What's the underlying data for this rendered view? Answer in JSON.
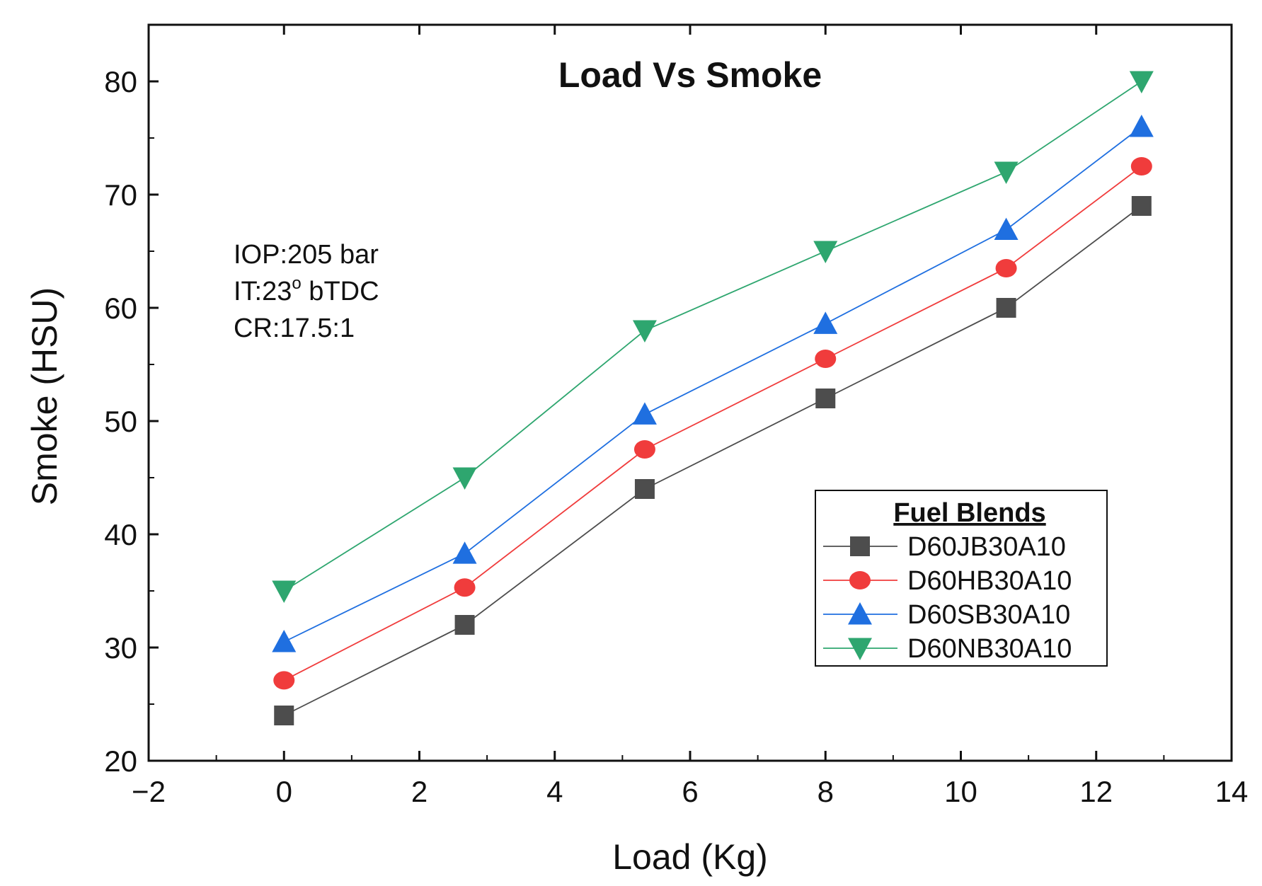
{
  "chart_data": {
    "type": "line",
    "title": "Load Vs Smoke",
    "xlabel": "Load (Kg)",
    "ylabel": "Smoke (HSU)",
    "xlim": [
      -2,
      14
    ],
    "ylim": [
      20,
      85
    ],
    "xticks": [
      -2,
      0,
      2,
      4,
      6,
      8,
      10,
      12,
      14
    ],
    "yticks": [
      20,
      30,
      40,
      50,
      60,
      70,
      80
    ],
    "x": [
      0,
      2.67,
      5.33,
      8,
      10.67,
      12.67
    ],
    "series": [
      {
        "name": "D60JB30A10",
        "marker": "square",
        "color": "#4d4d4d",
        "values": [
          24,
          32,
          44,
          52,
          60,
          69
        ]
      },
      {
        "name": "D60HB30A10",
        "marker": "circle",
        "color": "#f03c3c",
        "values": [
          27.1,
          35.3,
          47.5,
          55.5,
          63.5,
          72.5
        ]
      },
      {
        "name": "D60SB30A10",
        "marker": "triangle-up",
        "color": "#1f6fe0",
        "values": [
          30.5,
          38.3,
          50.6,
          58.6,
          66.9,
          76
        ]
      },
      {
        "name": "D60NB30A10",
        "marker": "triangle-down",
        "color": "#2ea66f",
        "values": [
          35,
          45,
          58,
          65,
          72,
          80
        ]
      }
    ],
    "annotations": [
      "IOP:205 bar",
      "IT:23",
      "o",
      " bTDC",
      "CR:17.5:1"
    ],
    "legend": {
      "title": "Fuel Blends",
      "placement": "bottom-right"
    },
    "grid": false
  }
}
